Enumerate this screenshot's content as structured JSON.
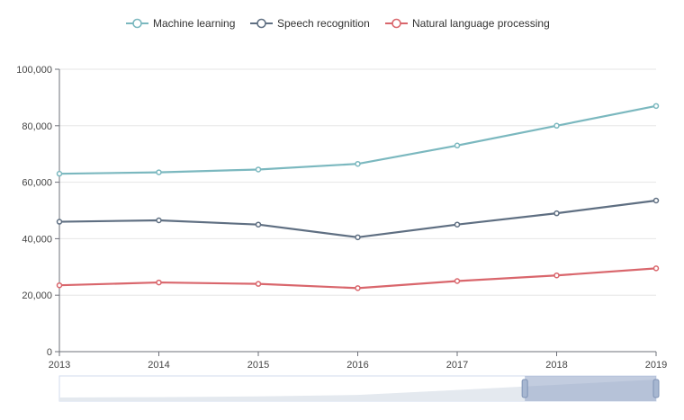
{
  "chart_data": {
    "type": "line",
    "categories": [
      "2013",
      "2014",
      "2015",
      "2016",
      "2017",
      "2018",
      "2019"
    ],
    "series": [
      {
        "name": "Machine learning",
        "color": "#7bb8bf",
        "values": [
          63000,
          63500,
          64500,
          66500,
          73000,
          80000,
          87000
        ]
      },
      {
        "name": "Speech recognition",
        "color": "#5f6f82",
        "values": [
          46000,
          46500,
          45000,
          40500,
          45000,
          49000,
          53500
        ]
      },
      {
        "name": "Natural language processing",
        "color": "#d9666c",
        "values": [
          23500,
          24500,
          24000,
          22500,
          25000,
          27000,
          29500
        ]
      }
    ],
    "ylim": [
      0,
      100000
    ],
    "yticks": [
      "0",
      "20,000",
      "40,000",
      "60,000",
      "80,000",
      "100,000"
    ],
    "grid": true,
    "legend": "top-center",
    "data_zoom": {
      "range_start": 0.78,
      "range_end": 1.0
    }
  }
}
